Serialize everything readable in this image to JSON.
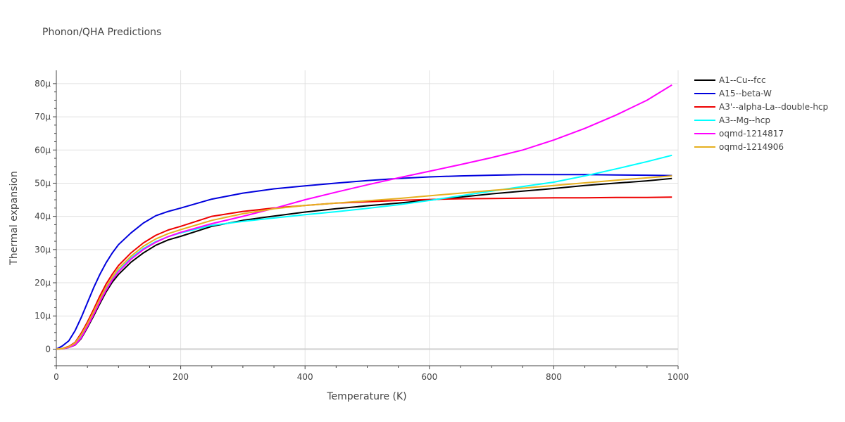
{
  "chart_data": {
    "type": "line",
    "title": "Phonon/QHA Predictions",
    "xlabel": "Temperature (K)",
    "ylabel": "Thermal expansion",
    "xlim": [
      0,
      1000
    ],
    "ylim": [
      -5,
      84
    ],
    "xticks": [
      0,
      200,
      400,
      600,
      800,
      1000
    ],
    "xtick_labels": [
      "0",
      "200",
      "400",
      "600",
      "800",
      "1000"
    ],
    "yticks": [
      0,
      10,
      20,
      30,
      40,
      50,
      60,
      70,
      80
    ],
    "ytick_labels": [
      "0",
      "10μ",
      "20μ",
      "30μ",
      "40μ",
      "50μ",
      "60μ",
      "70μ",
      "80μ"
    ],
    "grid": true,
    "legend_position": "right",
    "x": [
      0,
      10,
      20,
      30,
      40,
      50,
      60,
      70,
      80,
      90,
      100,
      120,
      140,
      160,
      180,
      200,
      250,
      300,
      350,
      400,
      450,
      500,
      550,
      600,
      650,
      700,
      750,
      800,
      850,
      900,
      950,
      990
    ],
    "series": [
      {
        "name": "A1--Cu--fcc",
        "color": "#000000",
        "values": [
          0,
          0.1,
          0.5,
          1.2,
          3.2,
          6.5,
          10.0,
          13.7,
          17.2,
          20.2,
          22.5,
          26.2,
          29.0,
          31.3,
          32.9,
          34.0,
          37.0,
          38.8,
          40.1,
          41.3,
          42.3,
          43.2,
          44.0,
          44.9,
          45.8,
          46.8,
          47.6,
          48.4,
          49.3,
          50.0,
          50.7,
          51.4
        ]
      },
      {
        "name": "A15--beta-W",
        "color": "#0000dd",
        "values": [
          0,
          1.0,
          2.5,
          5.5,
          9.5,
          14.0,
          18.5,
          22.5,
          26.0,
          29.0,
          31.5,
          35.0,
          38.0,
          40.2,
          41.5,
          42.5,
          45.2,
          47.0,
          48.3,
          49.2,
          50.0,
          50.8,
          51.4,
          51.9,
          52.2,
          52.4,
          52.6,
          52.6,
          52.6,
          52.5,
          52.4,
          52.3
        ]
      },
      {
        "name": "A3'--alpha-La--double-hcp",
        "color": "#ee0000",
        "values": [
          0,
          0.2,
          0.8,
          2.0,
          4.8,
          8.2,
          12.0,
          16.0,
          19.6,
          22.6,
          25.2,
          29.0,
          32.0,
          34.3,
          35.9,
          37.0,
          40.0,
          41.5,
          42.5,
          43.3,
          44.0,
          44.4,
          44.8,
          45.1,
          45.3,
          45.4,
          45.5,
          45.6,
          45.6,
          45.7,
          45.7,
          45.8
        ]
      },
      {
        "name": "A3--Mg--hcp",
        "color": "#00ffff",
        "values": [
          0,
          0.15,
          0.6,
          1.6,
          4.0,
          7.2,
          10.8,
          14.5,
          18.0,
          21.0,
          23.6,
          27.4,
          30.3,
          32.4,
          33.9,
          35.0,
          37.3,
          38.5,
          39.5,
          40.5,
          41.4,
          42.4,
          43.5,
          44.8,
          46.2,
          47.6,
          49.0,
          50.3,
          52.2,
          54.3,
          56.5,
          58.4
        ]
      },
      {
        "name": "oqmd-1214817",
        "color": "#ff00ff",
        "values": [
          0,
          0.1,
          0.5,
          1.3,
          3.4,
          6.8,
          10.4,
          14.2,
          17.7,
          20.8,
          23.3,
          27.1,
          30.0,
          32.2,
          33.9,
          35.2,
          37.8,
          40.0,
          42.4,
          45.0,
          47.3,
          49.5,
          51.6,
          53.6,
          55.6,
          57.7,
          60.0,
          63.0,
          66.5,
          70.5,
          75.0,
          79.6
        ]
      },
      {
        "name": "oqmd-1214906",
        "color": "#e6b020",
        "values": [
          0,
          0.15,
          0.7,
          1.8,
          4.3,
          7.6,
          11.3,
          15.1,
          18.7,
          21.7,
          24.3,
          28.0,
          31.0,
          33.2,
          34.8,
          36.0,
          38.8,
          40.8,
          42.3,
          43.3,
          44.0,
          44.7,
          45.4,
          46.2,
          47.0,
          47.8,
          48.5,
          49.3,
          50.1,
          50.9,
          51.6,
          52.2
        ]
      }
    ]
  }
}
